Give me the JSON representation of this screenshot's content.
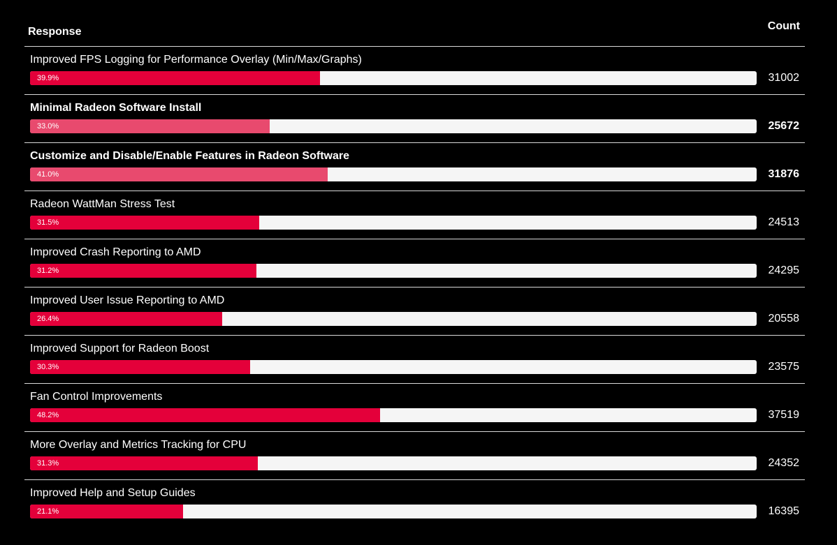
{
  "header": {
    "response_label": "Response",
    "count_label": "Count"
  },
  "colors": {
    "fill": "#e4003a",
    "fill_highlight": "#e84a6e",
    "track": "#f5f5f5",
    "background": "#000000"
  },
  "chart_data": {
    "type": "bar",
    "orientation": "horizontal",
    "categories": [
      "Improved FPS Logging for Performance Overlay (Min/Max/Graphs)",
      "Minimal Radeon Software Install",
      "Customize and Disable/Enable Features in Radeon Software",
      "Radeon WattMan Stress Test",
      "Improved Crash Reporting to AMD",
      "Improved User Issue Reporting to AMD",
      "Improved Support for Radeon Boost",
      "Fan Control Improvements",
      "More Overlay and Metrics Tracking for CPU",
      "Improved Help and Setup Guides"
    ],
    "percent_labels": [
      "39.9%",
      "33.0%",
      "41.0%",
      "31.5%",
      "31.2%",
      "26.4%",
      "30.3%",
      "48.2%",
      "31.3%",
      "21.1%"
    ],
    "percent_values": [
      39.9,
      33.0,
      41.0,
      31.5,
      31.2,
      26.4,
      30.3,
      48.2,
      31.3,
      21.1
    ],
    "counts": [
      "31002",
      "25672",
      "31876",
      "24513",
      "24295",
      "20558",
      "23575",
      "37519",
      "24352",
      "16395"
    ],
    "highlighted": [
      false,
      true,
      true,
      false,
      false,
      false,
      false,
      false,
      false,
      false
    ],
    "xlim": [
      0,
      100
    ]
  }
}
